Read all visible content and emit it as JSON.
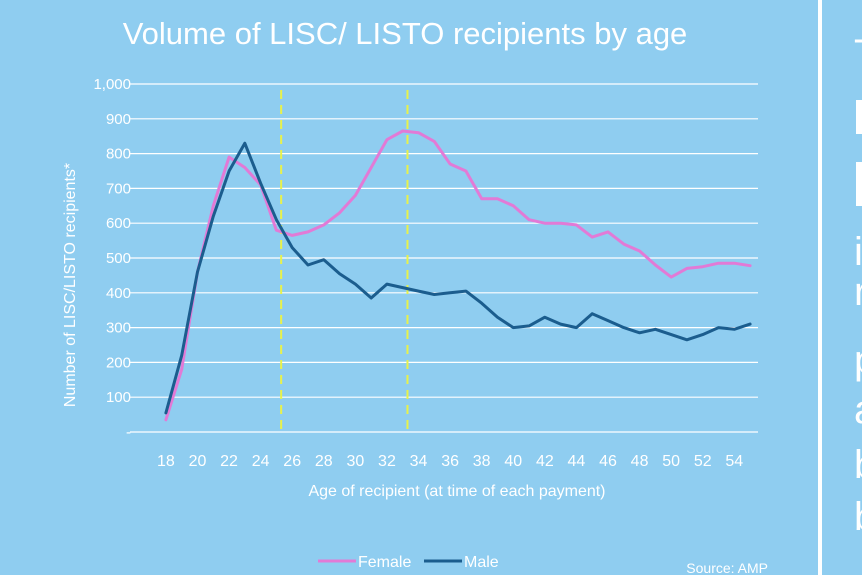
{
  "chart_data": {
    "type": "line",
    "title": "Volume of LISC/ LISTO recipients by age",
    "xlabel": "Age of recipient (at time of each payment)",
    "ylabel": "Number of LISC/LISTO recipients*",
    "x_ticks": [
      "18",
      "20",
      "22",
      "24",
      "26",
      "28",
      "30",
      "32",
      "34",
      "36",
      "38",
      "40",
      "42",
      "44",
      "46",
      "48",
      "50",
      "52",
      "54"
    ],
    "y_ticks": [
      "-",
      "100",
      "200",
      "300",
      "400",
      "500",
      "600",
      "700",
      "800",
      "900",
      "1,000"
    ],
    "xlim": [
      17.5,
      55.5
    ],
    "ylim": [
      0,
      1000
    ],
    "grid": true,
    "reference_lines_x": [
      25.3,
      33.3
    ],
    "series": [
      {
        "name": "Female",
        "color": "#e27ad6",
        "x": [
          18,
          19,
          20,
          21,
          22,
          23,
          24,
          25,
          26,
          27,
          28,
          29,
          30,
          31,
          32,
          33,
          34,
          35,
          36,
          37,
          38,
          39,
          40,
          41,
          42,
          43,
          44,
          45,
          46,
          47,
          48,
          49,
          50,
          51,
          52,
          53,
          54,
          55
        ],
        "y": [
          35,
          180,
          460,
          650,
          790,
          760,
          710,
          580,
          565,
          575,
          595,
          630,
          680,
          760,
          840,
          865,
          860,
          835,
          770,
          750,
          670,
          670,
          650,
          610,
          600,
          600,
          595,
          560,
          575,
          540,
          520,
          480,
          445,
          470,
          475,
          485,
          485,
          478
        ]
      },
      {
        "name": "Male",
        "color": "#1b5d8e",
        "x": [
          18,
          19,
          20,
          21,
          22,
          23,
          24,
          25,
          26,
          27,
          28,
          29,
          30,
          31,
          32,
          33,
          34,
          35,
          36,
          37,
          38,
          39,
          40,
          41,
          42,
          43,
          44,
          45,
          46,
          47,
          48,
          49,
          50,
          51,
          52,
          53,
          54,
          55
        ],
        "y": [
          55,
          220,
          460,
          620,
          750,
          830,
          715,
          610,
          530,
          480,
          495,
          455,
          425,
          385,
          425,
          415,
          405,
          395,
          400,
          405,
          370,
          330,
          300,
          305,
          330,
          310,
          300,
          340,
          320,
          300,
          285,
          295,
          280,
          265,
          280,
          300,
          295,
          310
        ]
      }
    ],
    "legend_position": "bottom-center",
    "source": "Source: AMP"
  },
  "side_panel": {
    "fragments": [
      "T",
      "i",
      "r",
      "p",
      "a",
      "b",
      "b"
    ]
  },
  "colors": {
    "background": "#8fcdf0",
    "text": "#ffffff",
    "reference_line": "#e8f24a"
  }
}
